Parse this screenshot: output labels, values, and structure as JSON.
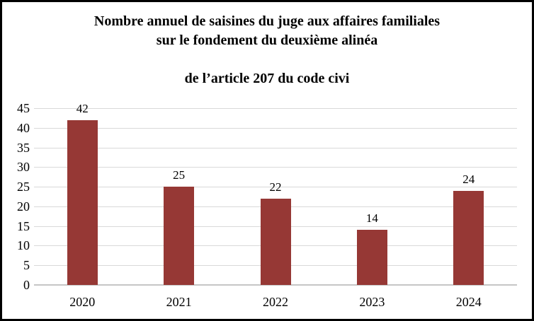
{
  "title": {
    "line1": "Nombre annuel de saisines du juge aux affaires familiales",
    "line2": "sur le fondement du deuxième alinéa",
    "line3": "de l’article 207 du code civi"
  },
  "colors": {
    "bar": "#963835",
    "gridline": "#d9d9d9",
    "baseline": "#c6c6c6",
    "frame_border": "#000000",
    "text": "#000000",
    "background": "#ffffff"
  },
  "chart_data": {
    "type": "bar",
    "title": "Nombre annuel de saisines du juge aux affaires familiales sur le fondement du deuxième alinéa de l’article 207 du code civi",
    "categories": [
      "2020",
      "2021",
      "2022",
      "2023",
      "2024"
    ],
    "values": [
      42,
      25,
      22,
      14,
      24
    ],
    "data_labels": [
      "42",
      "25",
      "22",
      "14",
      "24"
    ],
    "xlabel": "",
    "ylabel": "",
    "ylim": [
      0,
      45
    ],
    "ytick_interval": 5,
    "yticks": [
      45,
      40,
      35,
      30,
      25,
      20,
      15,
      10,
      5,
      0
    ],
    "grid": "horizontal",
    "legend": "none",
    "bar_color": "#963835"
  }
}
